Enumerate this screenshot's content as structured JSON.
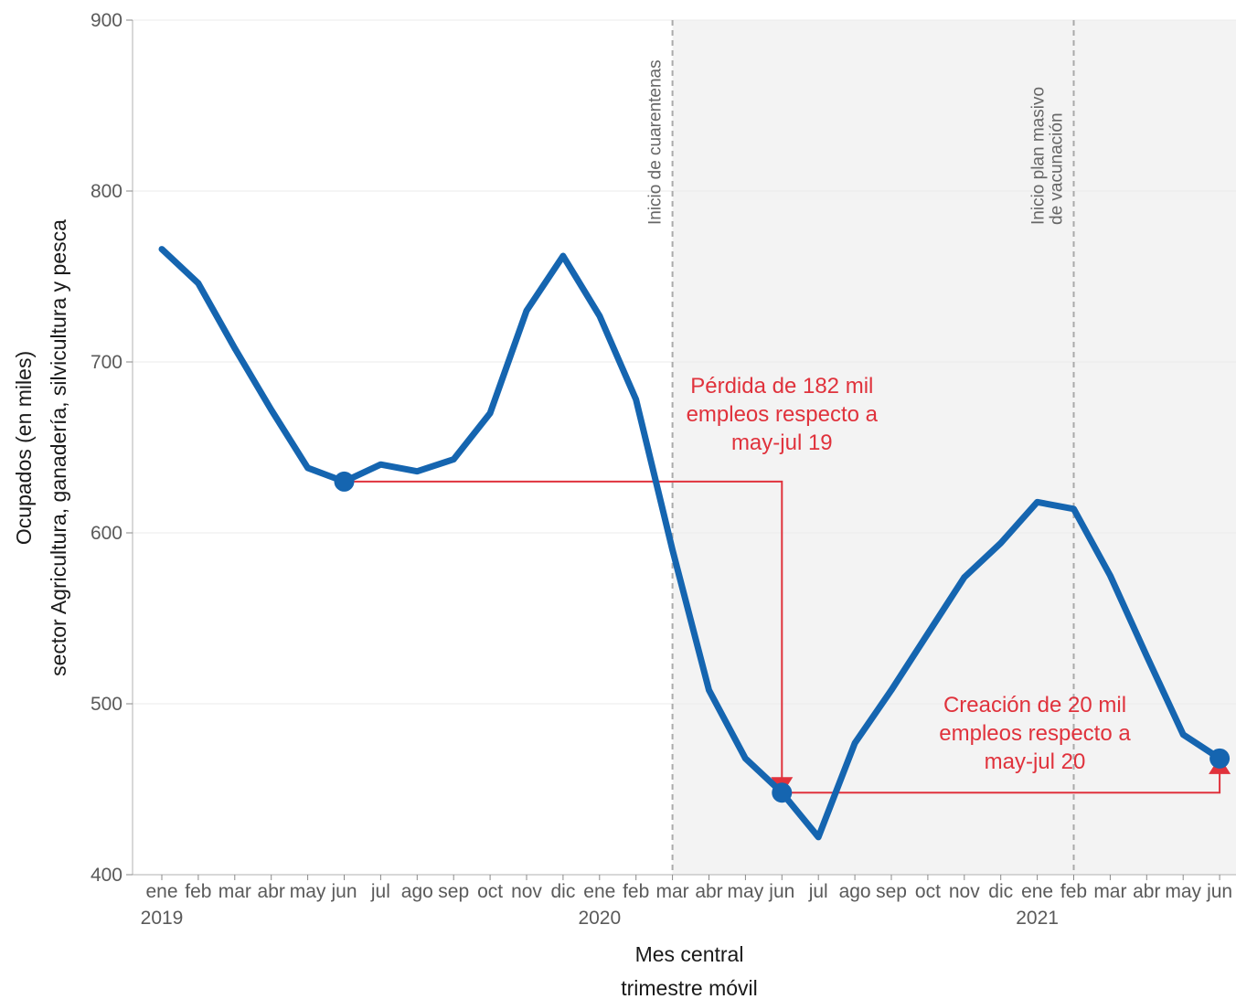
{
  "chart_data": {
    "type": "line",
    "x": [
      "ene",
      "feb",
      "mar",
      "abr",
      "may",
      "jun",
      "jul",
      "ago",
      "sep",
      "oct",
      "nov",
      "dic",
      "ene",
      "feb",
      "mar",
      "abr",
      "may",
      "jun",
      "jul",
      "ago",
      "sep",
      "oct",
      "nov",
      "dic",
      "ene",
      "feb",
      "mar",
      "abr",
      "may",
      "jun"
    ],
    "years": [
      {
        "label": "2019",
        "index": 0
      },
      {
        "label": "2020",
        "index": 12
      },
      {
        "label": "2021",
        "index": 24
      }
    ],
    "series": [
      {
        "values": [
          766,
          746,
          708,
          672,
          638,
          630,
          640,
          636,
          643,
          670,
          730,
          762,
          727,
          678,
          590,
          508,
          468,
          448,
          422,
          477,
          508,
          541,
          574,
          594,
          618,
          614,
          575,
          528,
          482,
          468
        ]
      }
    ],
    "highlight_points": [
      5,
      17,
      29
    ],
    "ylim": [
      400,
      900
    ],
    "yticks": [
      400,
      500,
      600,
      700,
      800,
      900
    ],
    "ylabel_line1": "Ocupados (en miles)",
    "ylabel_line2": "sector Agricultura, ganadería, silvicultura y pesca",
    "xlabel_line1": "Mes central",
    "xlabel_line2": "trimestre móvil",
    "shaded_region_start_index": 14,
    "vertical_lines": [
      {
        "index": 14,
        "label_lines": [
          "Inicio de cuarentenas"
        ]
      },
      {
        "index": 25,
        "label_lines": [
          "Inicio plan masivo",
          "de vacunación"
        ]
      }
    ],
    "annotations": [
      {
        "from_index": 5,
        "to_index": 17,
        "value_start": 630,
        "value_end": 448,
        "direction": "down",
        "text_lines": [
          "Pérdida de 182 mil",
          "empleos respecto a",
          "may-jul 19"
        ]
      },
      {
        "from_index": 17,
        "to_index": 29,
        "value_start": 448,
        "value_end": 468,
        "direction": "up",
        "text_lines": [
          "Creación de 20 mil",
          "empleos respecto a",
          "may-jul 20"
        ]
      }
    ],
    "colors": {
      "line": "#1565b0",
      "annotation": "#e0323c",
      "shade": "#f3f3f3",
      "dashed": "#aaaaaa"
    }
  }
}
